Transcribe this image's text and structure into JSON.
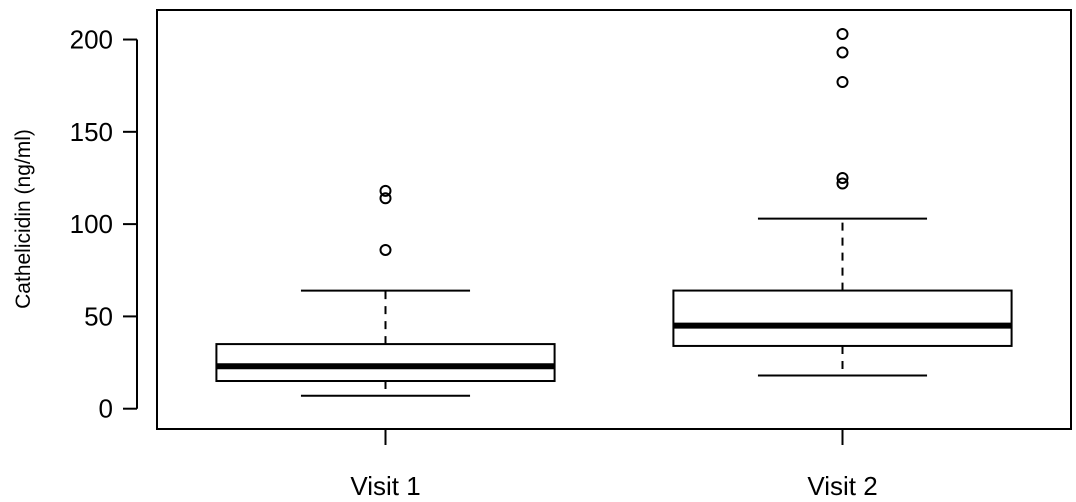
{
  "chart_data": {
    "type": "boxplot",
    "title": "",
    "xlabel": "",
    "ylabel": "Cathelicidin (ng/ml)",
    "ylim": [
      -11,
      216
    ],
    "yticks": [
      0,
      50,
      100,
      150,
      200
    ],
    "ytick_labels": [
      "0",
      "50",
      "100",
      "150",
      "200"
    ],
    "grid": false,
    "categories": [
      "Visit 1",
      "Visit 2"
    ],
    "boxes": [
      {
        "whisker_low": 7,
        "q1": 15,
        "median": 23,
        "q3": 35,
        "whisker_high": 64,
        "outliers": [
          86,
          114,
          118
        ]
      },
      {
        "whisker_low": 18,
        "q1": 34,
        "median": 45,
        "q3": 64,
        "whisker_high": 103,
        "outliers": [
          122,
          125,
          177,
          193,
          203
        ]
      }
    ]
  }
}
